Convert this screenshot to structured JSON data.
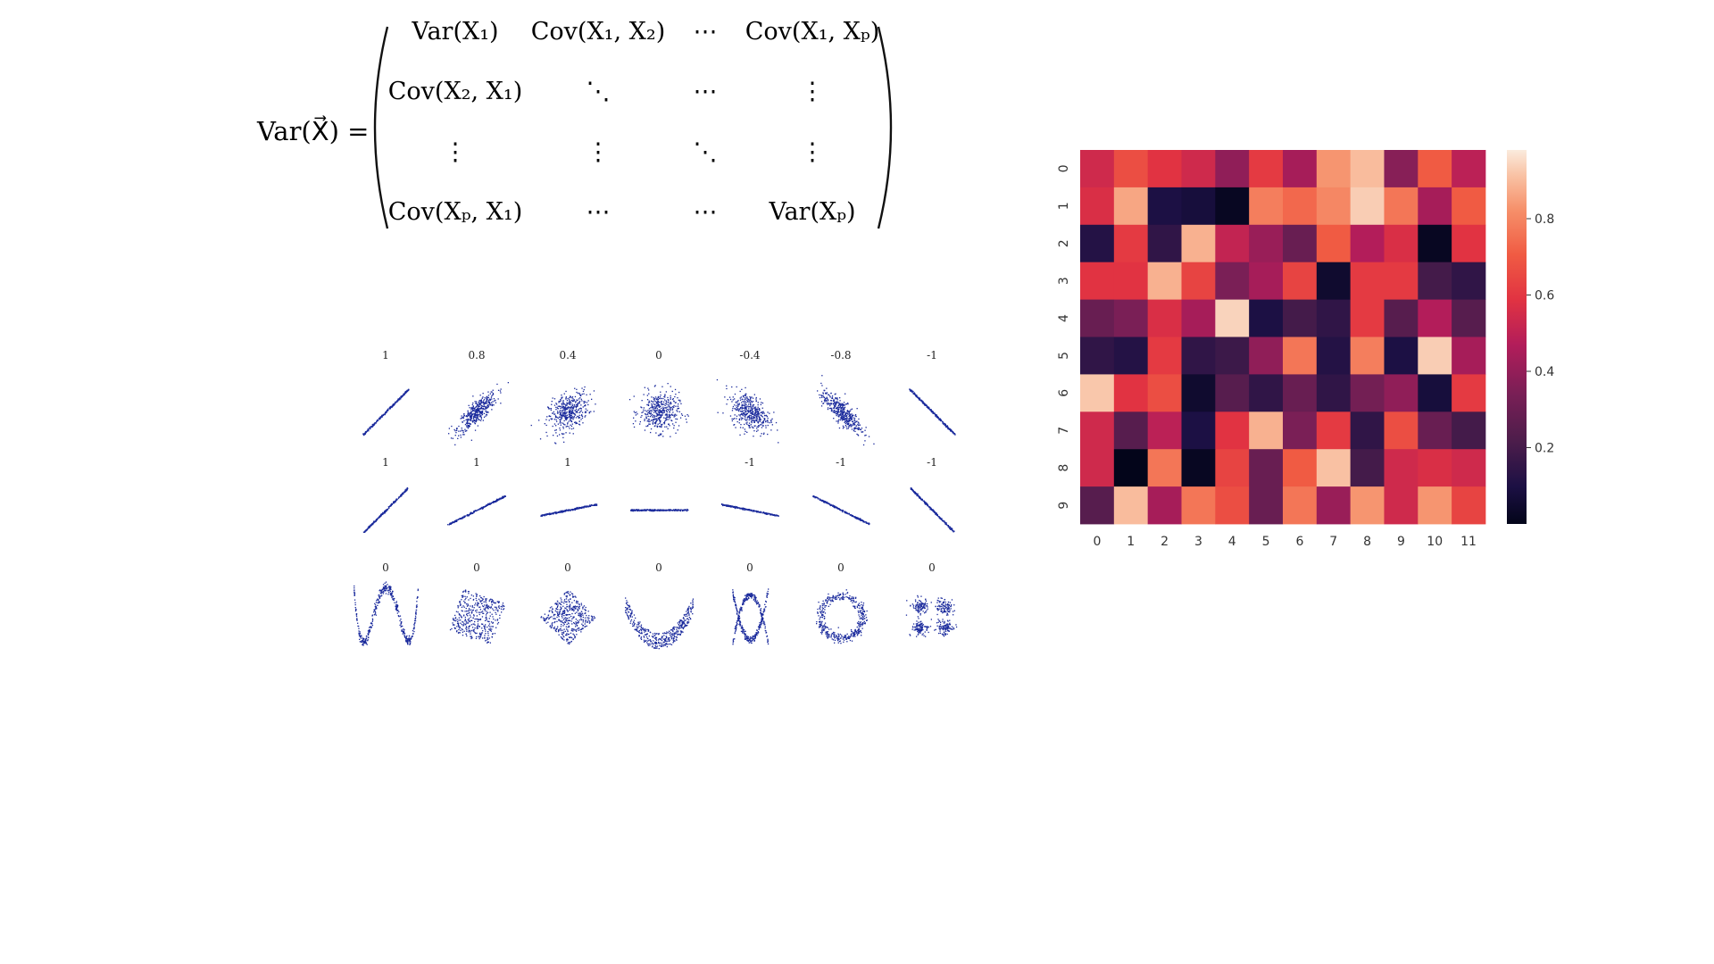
{
  "colors": {
    "scatter_point": "#1a2a9c",
    "background": "#ffffff",
    "heatmap_colormap": "rocket",
    "text": "#111111"
  },
  "formula": {
    "lhs": "Var(X⃗) =",
    "rows": [
      [
        "Var(X₁)",
        "Cov(X₁, X₂)",
        "⋯",
        "Cov(X₁, Xₚ)"
      ],
      [
        "Cov(X₂, X₁)",
        "⋱",
        "⋯",
        "⋮"
      ],
      [
        "⋮",
        "⋮",
        "⋱",
        "⋮"
      ],
      [
        "Cov(Xₚ, X₁)",
        "⋯",
        "⋯",
        "Var(Xₚ)"
      ]
    ]
  },
  "chart_data": [
    {
      "type": "scatter",
      "layout": "small-multiples grid, 3 rows x 7 columns",
      "panels": [
        {
          "row": 0,
          "label": "1",
          "pattern": "line",
          "slope": 1
        },
        {
          "row": 0,
          "label": "0.8",
          "pattern": "gaussian",
          "correlation": 0.8
        },
        {
          "row": 0,
          "label": "0.4",
          "pattern": "gaussian",
          "correlation": 0.4
        },
        {
          "row": 0,
          "label": "0",
          "pattern": "gaussian",
          "correlation": 0
        },
        {
          "row": 0,
          "label": "-0.4",
          "pattern": "gaussian",
          "correlation": -0.4
        },
        {
          "row": 0,
          "label": "-0.8",
          "pattern": "gaussian",
          "correlation": -0.8
        },
        {
          "row": 0,
          "label": "-1",
          "pattern": "line",
          "slope": -1
        },
        {
          "row": 1,
          "label": "1",
          "pattern": "line",
          "slope": 1
        },
        {
          "row": 1,
          "label": "1",
          "pattern": "line",
          "slope": 0.5
        },
        {
          "row": 1,
          "label": "1",
          "pattern": "line",
          "slope": 0.2
        },
        {
          "row": 1,
          "label": "",
          "pattern": "line",
          "slope": 0
        },
        {
          "row": 1,
          "label": "-1",
          "pattern": "line",
          "slope": -0.2
        },
        {
          "row": 1,
          "label": "-1",
          "pattern": "line",
          "slope": -0.5
        },
        {
          "row": 1,
          "label": "-1",
          "pattern": "line",
          "slope": -1
        },
        {
          "row": 2,
          "label": "0",
          "pattern": "w-shape"
        },
        {
          "row": 2,
          "label": "0",
          "pattern": "rotated-square"
        },
        {
          "row": 2,
          "label": "0",
          "pattern": "diamond"
        },
        {
          "row": 2,
          "label": "0",
          "pattern": "parabola"
        },
        {
          "row": 2,
          "label": "0",
          "pattern": "x-shape"
        },
        {
          "row": 2,
          "label": "0",
          "pattern": "ring"
        },
        {
          "row": 2,
          "label": "0",
          "pattern": "four-clusters"
        }
      ]
    },
    {
      "type": "heatmap",
      "colormap": "rocket",
      "x_tick_labels": [
        "0",
        "1",
        "2",
        "3",
        "4",
        "5",
        "6",
        "7",
        "8",
        "9",
        "10",
        "11"
      ],
      "y_tick_labels": [
        "0",
        "1",
        "2",
        "3",
        "4",
        "5",
        "6",
        "7",
        "8",
        "9"
      ],
      "colorbar_ticks": [
        "0.2",
        "0.4",
        "0.6",
        "0.8"
      ],
      "colorbar_range": [
        0.0,
        0.98
      ],
      "values": [
        [
          0.55,
          0.68,
          0.6,
          0.55,
          0.4,
          0.62,
          0.45,
          0.85,
          0.92,
          0.38,
          0.72,
          0.5
        ],
        [
          0.58,
          0.88,
          0.1,
          0.08,
          0.02,
          0.8,
          0.75,
          0.82,
          0.95,
          0.78,
          0.45,
          0.72
        ],
        [
          0.12,
          0.62,
          0.15,
          0.9,
          0.52,
          0.42,
          0.3,
          0.72,
          0.48,
          0.58,
          0.02,
          0.6
        ],
        [
          0.6,
          0.6,
          0.9,
          0.65,
          0.35,
          0.45,
          0.65,
          0.05,
          0.62,
          0.62,
          0.2,
          0.15
        ],
        [
          0.3,
          0.35,
          0.58,
          0.45,
          0.96,
          0.1,
          0.2,
          0.15,
          0.62,
          0.25,
          0.48,
          0.25
        ],
        [
          0.15,
          0.12,
          0.62,
          0.15,
          0.18,
          0.4,
          0.78,
          0.12,
          0.8,
          0.1,
          0.95,
          0.45
        ],
        [
          0.94,
          0.6,
          0.68,
          0.05,
          0.25,
          0.15,
          0.3,
          0.15,
          0.33,
          0.4,
          0.08,
          0.62
        ],
        [
          0.55,
          0.25,
          0.5,
          0.1,
          0.6,
          0.9,
          0.35,
          0.62,
          0.15,
          0.68,
          0.3,
          0.2
        ],
        [
          0.55,
          0.0,
          0.78,
          0.02,
          0.65,
          0.3,
          0.72,
          0.93,
          0.2,
          0.55,
          0.58,
          0.55
        ],
        [
          0.25,
          0.92,
          0.45,
          0.78,
          0.68,
          0.3,
          0.78,
          0.42,
          0.85,
          0.55,
          0.85,
          0.65
        ]
      ]
    }
  ]
}
